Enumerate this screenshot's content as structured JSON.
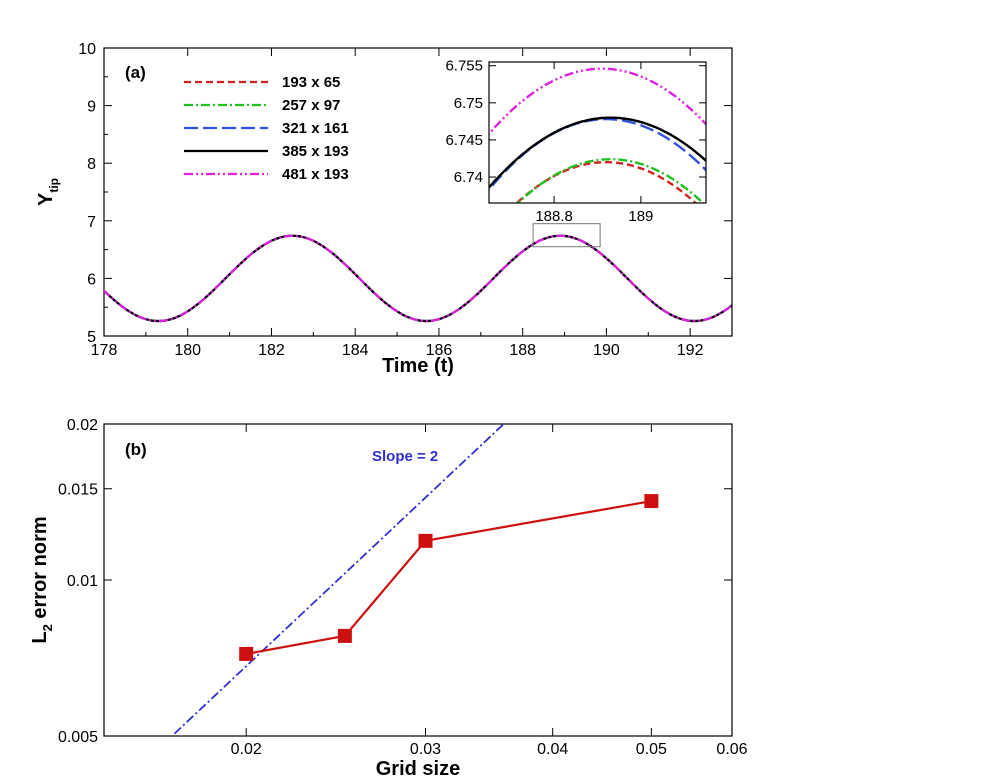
{
  "colors": {
    "c193x65": "#d42020",
    "c257x97": "#20c020",
    "c321x161": "#3050e0",
    "c385x193": "#000000",
    "c481x193": "#e020e0",
    "error_line": "#cc1010",
    "slope_line": "#3030d0"
  },
  "chart_data": [
    {
      "type": "line",
      "panel_label": "(a)",
      "xlabel": "Time (t)",
      "ylabel_main": "Y",
      "ylabel_sub": "tip",
      "xlim": [
        178,
        193
      ],
      "ylim": [
        5,
        10
      ],
      "xticks": [
        178,
        180,
        182,
        184,
        186,
        188,
        190,
        192
      ],
      "yticks": [
        5,
        6,
        7,
        8,
        9,
        10
      ],
      "signal": {
        "mean": 6.0,
        "amplitude": 0.74,
        "period": 6.4,
        "peak_time": 182.5
      },
      "series": [
        {
          "name": "193 x 65",
          "style": "dashed",
          "color_key": "c193x65"
        },
        {
          "name": "257 x 97",
          "style": "dashdot",
          "color_key": "c257x97"
        },
        {
          "name": "321 x 161",
          "style": "longdash",
          "color_key": "c321x161"
        },
        {
          "name": "385 x 193",
          "style": "solid",
          "color_key": "c385x193"
        },
        {
          "name": "481 x 193",
          "style": "dashdotdot",
          "color_key": "c481x193"
        }
      ],
      "zoom_box": {
        "xlim": [
          188.25,
          189.85
        ],
        "ylim": [
          6.55,
          6.95
        ]
      },
      "inset": {
        "xlim": [
          188.65,
          189.15
        ],
        "ylim": [
          6.7365,
          6.7555
        ],
        "xticks": [
          188.8,
          189.0
        ],
        "xtick_labels": [
          "188.8",
          "189"
        ],
        "yticks": [
          6.74,
          6.745,
          6.75,
          6.755
        ],
        "ytick_labels": [
          "6.74",
          "6.745",
          "6.75",
          "6.755"
        ],
        "peaks": [
          {
            "name": "193 x 65",
            "peak_x": 188.92,
            "peak_y": 6.742,
            "curv": 0.13
          },
          {
            "name": "257 x 97",
            "peak_x": 188.93,
            "peak_y": 6.7424,
            "curv": 0.13
          },
          {
            "name": "321 x 161",
            "peak_x": 188.92,
            "peak_y": 6.7478,
            "curv": 0.13
          },
          {
            "name": "385 x 193",
            "peak_x": 188.93,
            "peak_y": 6.748,
            "curv": 0.12
          },
          {
            "name": "481 x 193",
            "peak_x": 188.91,
            "peak_y": 6.7546,
            "curv": 0.13
          }
        ]
      }
    },
    {
      "type": "line",
      "scale": "log-log",
      "panel_label": "(b)",
      "xlabel": "Grid size",
      "ylabel_main": "L",
      "ylabel_sub": "2",
      "ylabel_rest": " error norm",
      "xlim": [
        0.0145,
        0.06
      ],
      "ylim": [
        0.005,
        0.02
      ],
      "xticks": [
        0.02,
        0.03,
        0.04,
        0.05,
        0.06
      ],
      "xtick_labels": [
        "0.02",
        "0.03",
        "0.04",
        "0.05",
        "0.06"
      ],
      "yticks": [
        0.005,
        0.01,
        0.015,
        0.02
      ],
      "ytick_labels": [
        "0.005",
        "0.01",
        "0.015",
        "0.02"
      ],
      "series": [
        {
          "name": "L2 error",
          "x": [
            0.02,
            0.025,
            0.03,
            0.05
          ],
          "y": [
            0.0072,
            0.0078,
            0.0119,
            0.0142
          ]
        }
      ],
      "reference": {
        "label": "Slope = 2",
        "slope": 2,
        "x": [
          0.017,
          0.036
        ],
        "y": [
          0.00505,
          0.0202
        ]
      }
    }
  ]
}
